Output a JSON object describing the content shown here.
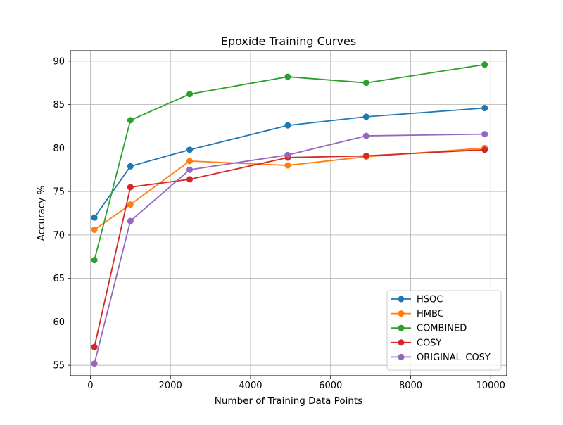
{
  "chart_data": {
    "type": "line",
    "title": "Epoxide Training Curves",
    "xlabel": "Number of Training Data Points",
    "ylabel": "Accuracy %",
    "xlim": [
      -500,
      10400
    ],
    "ylim": [
      53.8,
      91.2
    ],
    "xticks": [
      0,
      2000,
      4000,
      6000,
      8000,
      10000
    ],
    "yticks": [
      55,
      60,
      65,
      70,
      75,
      80,
      85,
      90
    ],
    "grid": true,
    "legend_position": "lower-right",
    "x": [
      100,
      1000,
      2480,
      4930,
      6890,
      9850
    ],
    "series": [
      {
        "name": "HSQC",
        "color": "#1f77b4",
        "values": [
          72.0,
          77.9,
          79.8,
          82.6,
          83.6,
          84.6
        ]
      },
      {
        "name": "HMBC",
        "color": "#ff7f0e",
        "values": [
          70.6,
          73.5,
          78.5,
          78.0,
          79.0,
          80.0
        ]
      },
      {
        "name": "COMBINED",
        "color": "#2ca02c",
        "values": [
          67.1,
          83.2,
          86.2,
          88.2,
          87.5,
          89.6
        ]
      },
      {
        "name": "COSY",
        "color": "#d62728",
        "values": [
          57.1,
          75.5,
          76.4,
          78.9,
          79.1,
          79.8
        ]
      },
      {
        "name": "ORIGINAL_COSY",
        "color": "#9467bd",
        "values": [
          55.2,
          71.6,
          77.5,
          79.2,
          81.4,
          81.6
        ]
      }
    ]
  }
}
